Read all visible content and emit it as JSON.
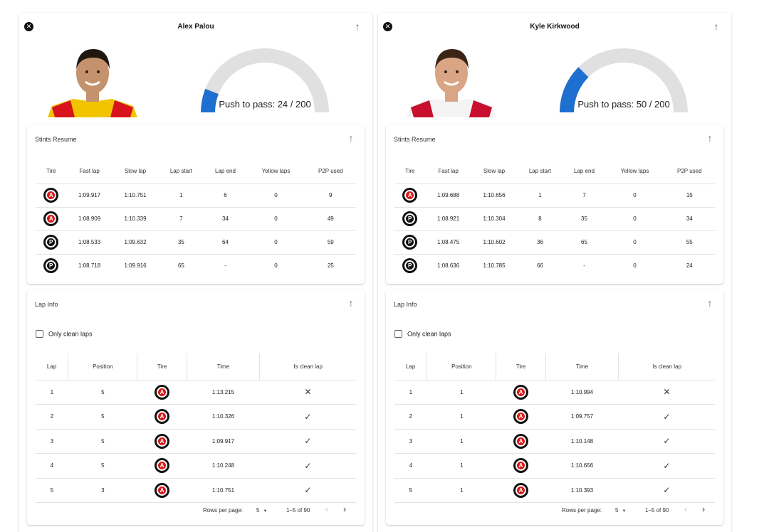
{
  "drivers": [
    {
      "name": "Alex Palou",
      "push_to_pass": {
        "label": "Push to pass: 24 / 200",
        "used": 24,
        "max": 200
      },
      "colors": {
        "suit_primary": "#f2c400",
        "suit_secondary": "#d8131b",
        "hair": "#1f1710",
        "skin": "#c4926c"
      },
      "stints": {
        "title": "Stints Resume",
        "columns": [
          "Tire",
          "Fast lap",
          "Slow lap",
          "Lap start",
          "Lap end",
          "Yellow laps",
          "P2P used"
        ],
        "rows": [
          {
            "tire": "A",
            "fast_lap": "1:09.917",
            "slow_lap": "1:10.751",
            "lap_start": "1",
            "lap_end": "6",
            "yellow_laps": "0",
            "p2p_used": "9"
          },
          {
            "tire": "A",
            "fast_lap": "1:08.909",
            "slow_lap": "1:10.339",
            "lap_start": "7",
            "lap_end": "34",
            "yellow_laps": "0",
            "p2p_used": "49"
          },
          {
            "tire": "P",
            "fast_lap": "1:08.533",
            "slow_lap": "1:09.632",
            "lap_start": "35",
            "lap_end": "64",
            "yellow_laps": "0",
            "p2p_used": "59"
          },
          {
            "tire": "P",
            "fast_lap": "1:08.718",
            "slow_lap": "1:09.916",
            "lap_start": "65",
            "lap_end": "-",
            "yellow_laps": "0",
            "p2p_used": "25"
          }
        ]
      },
      "laps": {
        "title": "Lap Info",
        "filter_label": "Only clean laps",
        "columns": [
          "Lap",
          "Position",
          "Tire",
          "Time",
          "Is clean lap"
        ],
        "rows": [
          {
            "lap": "1",
            "position": "5",
            "tire": "A",
            "time": "1:13.215",
            "clean": "✕"
          },
          {
            "lap": "2",
            "position": "5",
            "tire": "A",
            "time": "1:10.326",
            "clean": "✓"
          },
          {
            "lap": "3",
            "position": "5",
            "tire": "A",
            "time": "1:09.917",
            "clean": "✓"
          },
          {
            "lap": "4",
            "position": "5",
            "tire": "A",
            "time": "1:10.248",
            "clean": "✓"
          },
          {
            "lap": "5",
            "position": "3",
            "tire": "A",
            "time": "1:10.751",
            "clean": "✓"
          }
        ],
        "pagination": {
          "rows_per_page_label": "Rows per page:",
          "rows_per_page": "5",
          "range": "1–5 of 90"
        }
      }
    },
    {
      "name": "Kyle Kirkwood",
      "push_to_pass": {
        "label": "Push to pass: 50 / 200",
        "used": 50,
        "max": 200
      },
      "colors": {
        "suit_primary": "#f4f4f4",
        "suit_secondary": "#c8102e",
        "hair": "#3a2418",
        "skin": "#d9a585"
      },
      "stints": {
        "title": "Stints Resume",
        "columns": [
          "Tire",
          "Fast lap",
          "Slow lap",
          "Lap start",
          "Lap end",
          "Yellow laps",
          "P2P used"
        ],
        "rows": [
          {
            "tire": "A",
            "fast_lap": "1:09.688",
            "slow_lap": "1:10.656",
            "lap_start": "1",
            "lap_end": "7",
            "yellow_laps": "0",
            "p2p_used": "15"
          },
          {
            "tire": "P",
            "fast_lap": "1:08.921",
            "slow_lap": "1:10.304",
            "lap_start": "8",
            "lap_end": "35",
            "yellow_laps": "0",
            "p2p_used": "34"
          },
          {
            "tire": "P",
            "fast_lap": "1:08.475",
            "slow_lap": "1:10.602",
            "lap_start": "36",
            "lap_end": "65",
            "yellow_laps": "0",
            "p2p_used": "55"
          },
          {
            "tire": "P",
            "fast_lap": "1:08.636",
            "slow_lap": "1:10.785",
            "lap_start": "66",
            "lap_end": "-",
            "yellow_laps": "0",
            "p2p_used": "24"
          }
        ]
      },
      "laps": {
        "title": "Lap Info",
        "filter_label": "Only clean laps",
        "columns": [
          "Lap",
          "Position",
          "Tire",
          "Time",
          "Is clean lap"
        ],
        "rows": [
          {
            "lap": "1",
            "position": "1",
            "tire": "A",
            "time": "1:10.994",
            "clean": "✕"
          },
          {
            "lap": "2",
            "position": "1",
            "tire": "A",
            "time": "1:09.757",
            "clean": "✓"
          },
          {
            "lap": "3",
            "position": "1",
            "tire": "A",
            "time": "1:10.148",
            "clean": "✓"
          },
          {
            "lap": "4",
            "position": "1",
            "tire": "A",
            "time": "1:10.656",
            "clean": "✓"
          },
          {
            "lap": "5",
            "position": "1",
            "tire": "A",
            "time": "1:10.393",
            "clean": "✓"
          }
        ],
        "pagination": {
          "rows_per_page_label": "Rows per page:",
          "rows_per_page": "5",
          "range": "1–5 of 90"
        }
      }
    }
  ],
  "gauge_colors": {
    "track": "#e0e0e0",
    "fill": "#1e6fd0"
  },
  "icons": {
    "close": "close-icon",
    "collapse": "arrow-up-icon",
    "prev": "chevron-left-icon",
    "next": "chevron-right-icon",
    "dropdown": "caret-down-icon",
    "checkbox": "checkbox-icon"
  }
}
